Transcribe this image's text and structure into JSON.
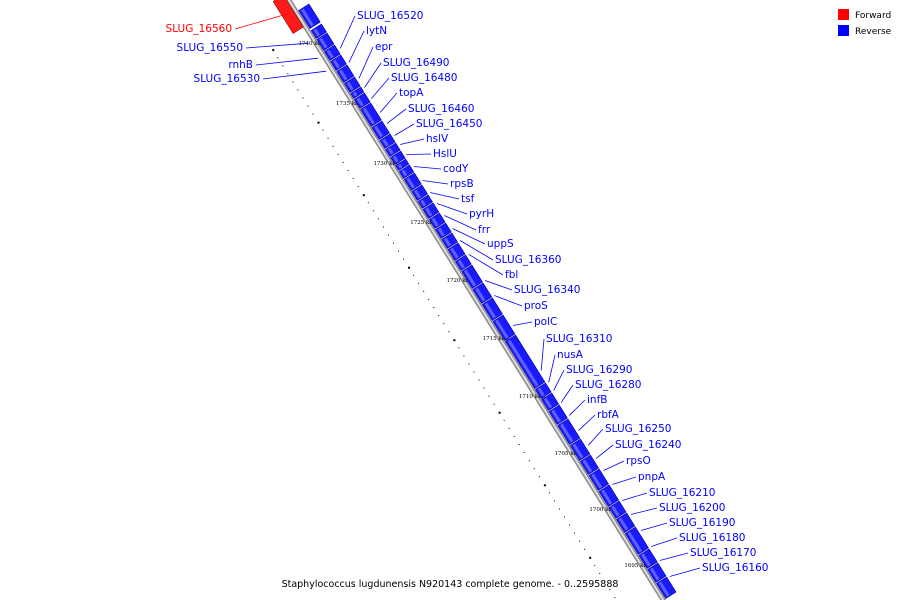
{
  "legend": {
    "forward_label": "Forward",
    "reverse_label": "Reverse",
    "forward_color": "#ff0000",
    "reverse_color": "#0000ff"
  },
  "caption": "Staphylococcus lugdunensis N920143 complete genome. - 0..2595888",
  "tick_labels": [
    "1740 kbp",
    "1735 kbp",
    "1730 kbp",
    "1725 kbp",
    "1720 kbp",
    "1715 kbp",
    "1710 kbp",
    "1705 kbp",
    "1700 kbp",
    "1695 kbp"
  ],
  "genes": [
    {
      "name": "SLUG_16560",
      "strand": "forward"
    },
    {
      "name": "SLUG_16550",
      "strand": "reverse"
    },
    {
      "name": "rnhB",
      "strand": "reverse"
    },
    {
      "name": "SLUG_16530",
      "strand": "reverse"
    },
    {
      "name": "SLUG_16520",
      "strand": "reverse"
    },
    {
      "name": "lytN",
      "strand": "reverse"
    },
    {
      "name": "epr",
      "strand": "reverse"
    },
    {
      "name": "SLUG_16490",
      "strand": "reverse"
    },
    {
      "name": "SLUG_16480",
      "strand": "reverse"
    },
    {
      "name": "topA",
      "strand": "reverse"
    },
    {
      "name": "SLUG_16460",
      "strand": "reverse"
    },
    {
      "name": "SLUG_16450",
      "strand": "reverse"
    },
    {
      "name": "hslV",
      "strand": "reverse"
    },
    {
      "name": "HslU",
      "strand": "reverse"
    },
    {
      "name": "codY",
      "strand": "reverse"
    },
    {
      "name": "rpsB",
      "strand": "reverse"
    },
    {
      "name": "tsf",
      "strand": "reverse"
    },
    {
      "name": "pyrH",
      "strand": "reverse"
    },
    {
      "name": "frr",
      "strand": "reverse"
    },
    {
      "name": "uppS",
      "strand": "reverse"
    },
    {
      "name": "SLUG_16360",
      "strand": "reverse"
    },
    {
      "name": "fbl",
      "strand": "reverse"
    },
    {
      "name": "SLUG_16340",
      "strand": "reverse"
    },
    {
      "name": "proS",
      "strand": "reverse"
    },
    {
      "name": "polC",
      "strand": "reverse"
    },
    {
      "name": "SLUG_16310",
      "strand": "reverse"
    },
    {
      "name": "nusA",
      "strand": "reverse"
    },
    {
      "name": "SLUG_16290",
      "strand": "reverse"
    },
    {
      "name": "SLUG_16280",
      "strand": "reverse"
    },
    {
      "name": "infB",
      "strand": "reverse"
    },
    {
      "name": "rbfA",
      "strand": "reverse"
    },
    {
      "name": "SLUG_16250",
      "strand": "reverse"
    },
    {
      "name": "SLUG_16240",
      "strand": "reverse"
    },
    {
      "name": "rpsO",
      "strand": "reverse"
    },
    {
      "name": "pnpA",
      "strand": "reverse"
    },
    {
      "name": "SLUG_16210",
      "strand": "reverse"
    },
    {
      "name": "SLUG_16200",
      "strand": "reverse"
    },
    {
      "name": "SLUG_16190",
      "strand": "reverse"
    },
    {
      "name": "SLUG_16180",
      "strand": "reverse"
    },
    {
      "name": "SLUG_16170",
      "strand": "reverse"
    },
    {
      "name": "SLUG_16160",
      "strand": "reverse"
    }
  ]
}
